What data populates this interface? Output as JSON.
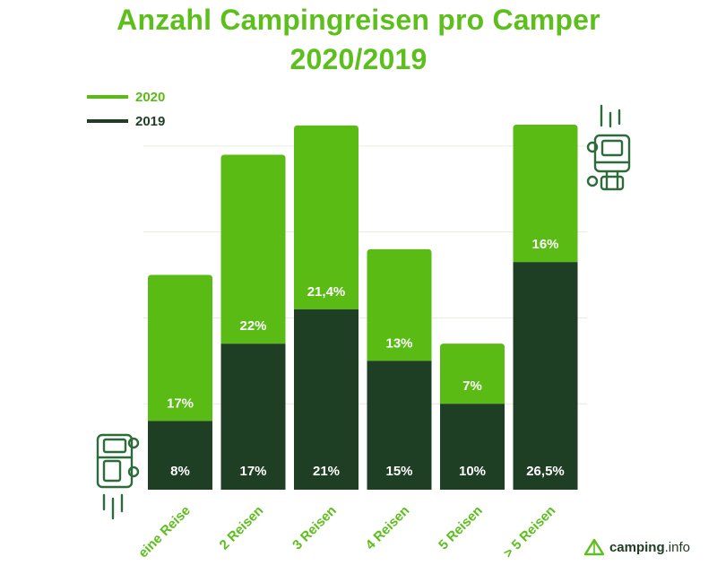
{
  "colors": {
    "series_2020": "#59bb14",
    "series_2019": "#1f3f25",
    "title": "#5cbf1c",
    "grid": "#e4ecdf",
    "icon": "#2e6b3a"
  },
  "logo": {
    "brand": "camping",
    "suffix": ".info"
  },
  "chart_data": {
    "type": "bar",
    "stacked": true,
    "title": "Anzahl Campingreisen pro Camper",
    "subtitle": "2020/2019",
    "categories": [
      "eine Reise",
      "2 Reisen",
      "3 Reisen",
      "4 Reisen",
      "5 Reisen",
      "> 5 Reisen"
    ],
    "series": [
      {
        "name": "2019",
        "values": [
          8,
          17,
          21,
          15,
          10,
          26.5
        ],
        "labels": [
          "8%",
          "17%",
          "21%",
          "15%",
          "10%",
          "26,5%"
        ]
      },
      {
        "name": "2020",
        "values": [
          17,
          22,
          21.4,
          13,
          7,
          16
        ],
        "labels": [
          "17%",
          "22%",
          "21,4%",
          "13%",
          "7%",
          "16%"
        ]
      }
    ],
    "legend": [
      "2020",
      "2019"
    ],
    "legend_position": "top-left",
    "unit": "%",
    "ylim": [
      0,
      45
    ],
    "grid": true,
    "xlabel": "",
    "ylabel": ""
  }
}
